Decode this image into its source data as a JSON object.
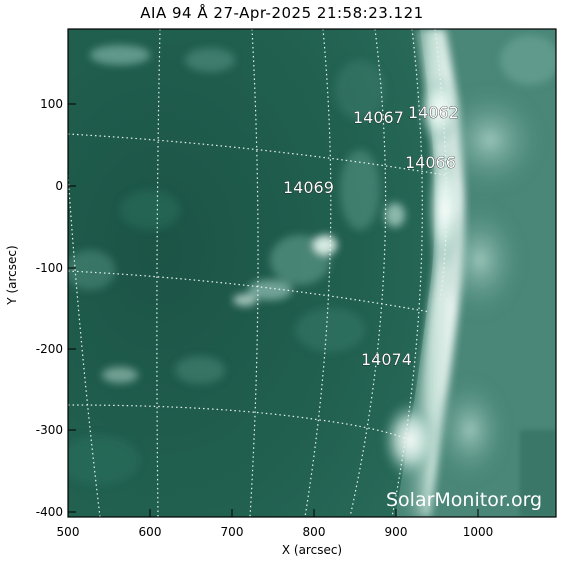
{
  "title": "AIA 94 Å 27-Apr-2025 21:58:23.121",
  "axes": {
    "xlabel": "X (arcsec)",
    "ylabel": "Y (arcsec)",
    "x_ticks": [
      "500",
      "600",
      "700",
      "800",
      "900",
      "1000"
    ],
    "y_ticks": [
      "100",
      "0",
      "-100",
      "-200",
      "-300",
      "-400"
    ]
  },
  "active_regions": [
    {
      "label": "14067"
    },
    {
      "label": "14062"
    },
    {
      "label": "14066"
    },
    {
      "label": "14069"
    },
    {
      "label": "14074"
    }
  ],
  "credit": "SolarMonitor.org",
  "colors": {
    "disk": "#1f5a4c",
    "corona": "#4f8f80",
    "limb": "#dff0ea",
    "grid": "#e8f4ef"
  }
}
